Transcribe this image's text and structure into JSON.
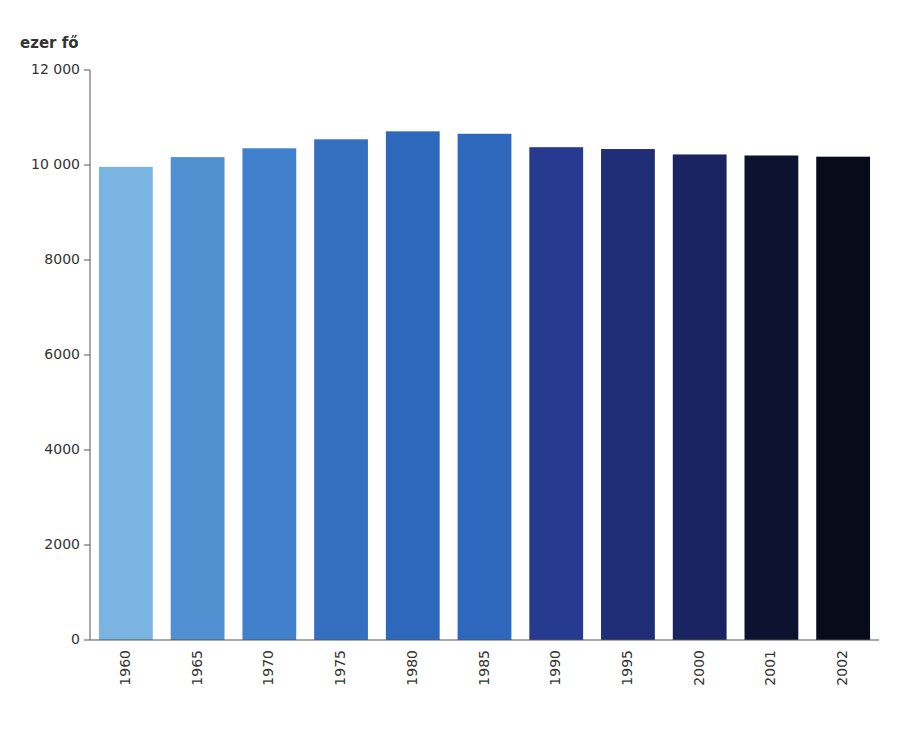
{
  "chart_data": {
    "type": "bar",
    "ylabel": "ezer fő",
    "categories": [
      "1960",
      "1965",
      "1970",
      "1975",
      "1980",
      "1985",
      "1990",
      "1995",
      "2000",
      "2001",
      "2002"
    ],
    "values": [
      9961,
      10166,
      10352,
      10541,
      10709,
      10657,
      10375,
      10336,
      10222,
      10200,
      10175
    ],
    "colors": [
      "#7ab4e0",
      "#5090d0",
      "#4080cc",
      "#3570c0",
      "#2d68bc",
      "#2d68bc",
      "#263a90",
      "#202e78",
      "#1a2460",
      "#0d1230",
      "#080c1a"
    ],
    "ylim": [
      0,
      12000
    ],
    "yticks": [
      0,
      2000,
      4000,
      6000,
      8000,
      {
        "value": 10000,
        "label": "10 000"
      },
      {
        "value": 12000,
        "label": "12 000"
      }
    ],
    "grid": false
  }
}
